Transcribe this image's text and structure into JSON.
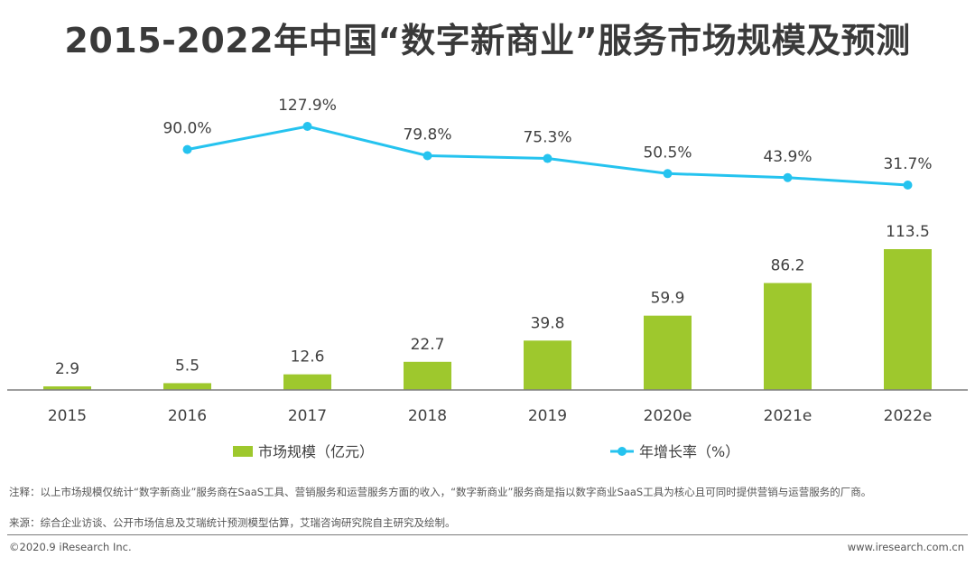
{
  "title": "2015-2022年中国“数字新商业”服务市场规模及预测",
  "chart_data": {
    "type": "bar+line",
    "categories": [
      "2015",
      "2016",
      "2017",
      "2018",
      "2019",
      "2020e",
      "2021e",
      "2022e"
    ],
    "series": [
      {
        "name": "市场规模（亿元）",
        "type": "bar",
        "color": "#9ec82d",
        "values": [
          2.9,
          5.5,
          12.6,
          22.7,
          39.8,
          59.9,
          86.2,
          113.5
        ],
        "labels": [
          "2.9",
          "5.5",
          "12.6",
          "22.7",
          "39.8",
          "59.9",
          "86.2",
          "113.5"
        ]
      },
      {
        "name": "年增长率（%）",
        "type": "line",
        "color": "#25c3ef",
        "values": [
          null,
          90.0,
          127.9,
          79.8,
          75.3,
          50.5,
          43.9,
          31.7
        ],
        "labels": [
          null,
          "90.0%",
          "127.9%",
          "79.8%",
          "75.3%",
          "50.5%",
          "43.9%",
          "31.7%"
        ]
      }
    ],
    "legend": [
      "市场规模（亿元）",
      "年增长率（%）"
    ],
    "legend_position": "bottom"
  },
  "notes": {
    "note1": "注释：以上市场规模仅统计“数字新商业”服务商在SaaS工具、营销服务和运营服务方面的收入，“数字新商业”服务商是指以数字商业SaaS工具为核心且可同时提供营销与运营服务的厂商。",
    "note2": "来源：综合企业访谈、公开市场信息及艾瑞统计预测模型估算，艾瑞咨询研究院自主研究及绘制。"
  },
  "footer": {
    "copyright": "©2020.9 iResearch Inc.",
    "website": "www.iresearch.com.cn"
  }
}
